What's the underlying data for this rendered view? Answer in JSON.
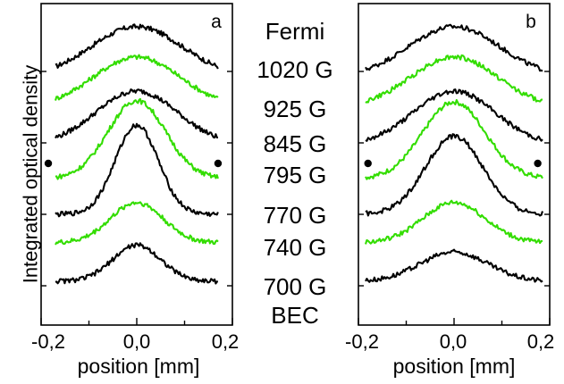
{
  "chart_data": [
    {
      "panel": "a",
      "type": "line",
      "xlabel": "position [mm]",
      "ylabel": "Integrated optical density",
      "xlim": [
        -0.2,
        0.2
      ],
      "xticks": [
        "-0,2",
        "0,0",
        "0,2"
      ],
      "x_range": [
        -0.17,
        0.17
      ],
      "series": [
        {
          "name": "1020 G",
          "color": "#000000",
          "baseline": 88,
          "amplitude": 72,
          "width": 0.095
        },
        {
          "name": "925 G",
          "color": "#33dd00",
          "baseline": 86,
          "amplitude": 72,
          "width": 0.09
        },
        {
          "name": "845 G",
          "color": "#000000",
          "baseline": 84,
          "amplitude": 77,
          "width": 0.085
        },
        {
          "name": "795 G",
          "color": "#33dd00",
          "baseline": 80,
          "amplitude": 112,
          "width": 0.06
        },
        {
          "name": "770 G",
          "color": "#000000",
          "baseline": 74,
          "amplitude": 128,
          "width": 0.045
        },
        {
          "name": "740 G",
          "color": "#33dd00",
          "baseline": 48,
          "amplitude": 58,
          "width": 0.055
        },
        {
          "name": "700 G",
          "color": "#000000",
          "baseline": 38,
          "amplitude": 52,
          "width": 0.05
        }
      ],
      "markers": [
        {
          "x": -0.185,
          "y": 118
        },
        {
          "x": 0.17,
          "y": 118
        }
      ]
    },
    {
      "panel": "b",
      "type": "line",
      "xlabel": "position [mm]",
      "xlim": [
        -0.2,
        0.2
      ],
      "xticks": [
        "-0,2",
        "0,0",
        "0,2"
      ],
      "x_range": [
        -0.185,
        0.185
      ],
      "series": [
        {
          "name": "1020 G",
          "color": "#000000",
          "baseline": 88,
          "amplitude": 72,
          "width": 0.095
        },
        {
          "name": "925 G",
          "color": "#33dd00",
          "baseline": 86,
          "amplitude": 72,
          "width": 0.09
        },
        {
          "name": "845 G",
          "color": "#000000",
          "baseline": 84,
          "amplitude": 77,
          "width": 0.085
        },
        {
          "name": "795 G",
          "color": "#33dd00",
          "baseline": 80,
          "amplitude": 110,
          "width": 0.065
        },
        {
          "name": "770 G",
          "color": "#000000",
          "baseline": 74,
          "amplitude": 112,
          "width": 0.06
        },
        {
          "name": "740 G",
          "color": "#33dd00",
          "baseline": 48,
          "amplitude": 58,
          "width": 0.065
        },
        {
          "name": "700 G",
          "color": "#000000",
          "baseline": 38,
          "amplitude": 42,
          "width": 0.07
        }
      ],
      "markers": [
        {
          "x": -0.18,
          "y": 118
        },
        {
          "x": 0.175,
          "y": 118
        }
      ]
    }
  ],
  "center_labels": [
    {
      "text": "Fermi",
      "color": "#000000"
    },
    {
      "text": "1020 G",
      "color": "#000000"
    },
    {
      "text": "925 G",
      "color": "#33dd00"
    },
    {
      "text": "845 G",
      "color": "#000000"
    },
    {
      "text": "795 G",
      "color": "#33dd00"
    },
    {
      "text": "770 G",
      "color": "#000000"
    },
    {
      "text": "740 G",
      "color": "#33dd00"
    },
    {
      "text": "700 G",
      "color": "#000000"
    },
    {
      "text": "BEC",
      "color": "#000000"
    }
  ]
}
